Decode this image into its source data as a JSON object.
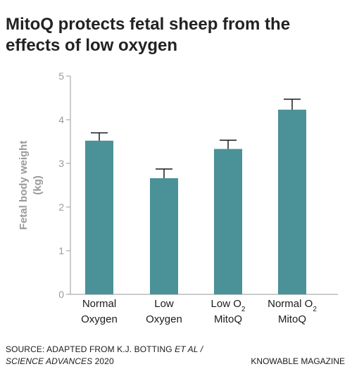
{
  "title_lines": [
    "MitoQ protects fetal sheep from the",
    "effects of low oxygen"
  ],
  "chart_data": {
    "type": "bar",
    "title": "MitoQ protects fetal sheep from the effects of low oxygen",
    "categories": [
      [
        "Normal",
        "Oxygen"
      ],
      [
        "Low",
        "Oxygen"
      ],
      [
        "Low O",
        "MitoQ"
      ],
      [
        "Normal O",
        "MitoQ"
      ]
    ],
    "category_subscripts": [
      "",
      "",
      "2",
      "2"
    ],
    "values": [
      3.52,
      2.66,
      3.33,
      4.23
    ],
    "error_upper": [
      3.7,
      2.87,
      3.53,
      4.47
    ],
    "ylabel_lines": [
      "Fetal body weight",
      "(kg)"
    ],
    "ylim": [
      0,
      5
    ],
    "yticks": [
      0,
      1,
      2,
      3,
      4,
      5
    ],
    "grid": false,
    "bar_color": "#4a9198",
    "axis_color": "#9a9a9a"
  },
  "source": {
    "prefix": "SOURCE: ADAPTED FROM K.J. BOTTING ",
    "italic1": "ET AL /",
    "italic2": "SCIENCE ADVANCES",
    "suffix": " 2020"
  },
  "brand": "KNOWABLE MAGAZINE"
}
